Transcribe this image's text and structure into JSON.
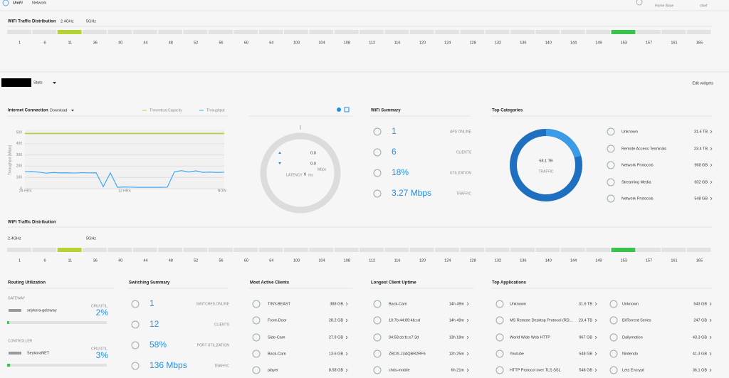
{
  "header": {
    "brand": "UniFi",
    "product": "Network",
    "site": "Home Base",
    "user": "chief"
  },
  "wifi_top": {
    "title": "WiFi Traffic Distribution",
    "bands": [
      "2.4GHz",
      "5GHz"
    ],
    "channels": [
      "1",
      "6",
      "11",
      "36",
      "40",
      "44",
      "48",
      "52",
      "56",
      "60",
      "64",
      "100",
      "104",
      "108",
      "112",
      "116",
      "120",
      "124",
      "128",
      "132",
      "136",
      "140",
      "144",
      "149",
      "153",
      "157",
      "161",
      "165"
    ],
    "active": [
      {
        "channel": "11",
        "color": "#b5d334"
      },
      {
        "channel": "153",
        "color": "#3bc44b"
      }
    ]
  },
  "stats": {
    "title": "Stats",
    "edit": "Edit widgets"
  },
  "chart_data": {
    "type": "line",
    "title": "Internet Connection",
    "mode": "Download",
    "y_label": "Throughput [Mbps]",
    "categories": [
      "24 HRS",
      null,
      null,
      null,
      null,
      null,
      null,
      null,
      null,
      null,
      null,
      null,
      null,
      null,
      "12 HRS",
      null,
      null,
      null,
      null,
      null,
      null,
      null,
      null,
      null,
      null,
      null,
      null,
      null,
      "NOW"
    ],
    "ylim": [
      0,
      500
    ],
    "yticks": [
      0,
      100,
      200,
      300,
      400,
      500
    ],
    "grid": true,
    "series": [
      {
        "name": "Theoretical Capacity",
        "color": "#b5d334",
        "values": [
          490,
          490,
          490,
          490,
          490,
          490,
          490,
          490,
          490,
          490,
          490,
          490,
          490,
          490,
          490,
          490,
          490,
          490,
          490,
          490,
          490,
          490,
          490,
          490,
          490,
          490,
          490,
          490,
          490
        ]
      },
      {
        "name": "Throughput",
        "color": "#3fa9f5",
        "values": [
          150,
          152,
          146,
          138,
          143,
          140,
          141,
          139,
          142,
          140,
          141,
          18,
          140,
          12,
          15,
          13,
          12,
          12,
          12,
          12,
          13,
          150,
          160,
          148,
          158,
          145,
          147,
          144,
          146
        ]
      }
    ]
  },
  "speedtest": {
    "down": "0.0",
    "up": "0.0",
    "unit": "Mbps",
    "latency_label": "LATENCY",
    "latency": "0",
    "latency_unit": "ms"
  },
  "wifi_summary": {
    "title": "WiFi Summary",
    "items": [
      {
        "value": "1",
        "label": "APS ONLINE"
      },
      {
        "value": "6",
        "label": "CLIENTS"
      },
      {
        "value": "18%",
        "label": "UTILIZATION"
      },
      {
        "value": "3.27 Mbps",
        "label": "TRAFFIC"
      }
    ]
  },
  "top_categories": {
    "title": "Top Categories",
    "total": "58.1 TB",
    "total_label": "TRAFFIC",
    "items": [
      {
        "name": "Unknown",
        "value": "31.6 TB"
      },
      {
        "name": "Remote Access Terminals",
        "value": "23.4 TB"
      },
      {
        "name": "Network Protocols",
        "value": "968 GB"
      },
      {
        "name": "Streaming Media",
        "value": "602 GB"
      },
      {
        "name": "Network Protocols",
        "value": "548 GB"
      }
    ]
  },
  "wifi_bottom": {
    "title": "WiFi Traffic Distribution",
    "bands": [
      "2.4GHz",
      "5GHz"
    ],
    "channels": [
      "1",
      "6",
      "11",
      "36",
      "40",
      "44",
      "48",
      "52",
      "56",
      "60",
      "64",
      "100",
      "104",
      "108",
      "112",
      "116",
      "120",
      "124",
      "128",
      "132",
      "136",
      "140",
      "144",
      "149",
      "153",
      "157",
      "161",
      "165"
    ],
    "active": [
      {
        "channel": "11",
        "color": "#b5d334"
      },
      {
        "channel": "153",
        "color": "#3bc44b"
      }
    ]
  },
  "routing": {
    "title": "Routing Utilization",
    "sections": [
      {
        "label": "GATEWAY",
        "name": "seykora-gateway",
        "metric": "CPU/UTIL.",
        "value": 2,
        "value_label": "2%"
      },
      {
        "label": "CONTROLLER",
        "name": "SeykoraNET",
        "metric": "CPU/UTIL.",
        "value": 3,
        "value_label": "3%"
      }
    ]
  },
  "switching": {
    "title": "Switching Summary",
    "items": [
      {
        "value": "1",
        "label": "SWITCHES ONLINE"
      },
      {
        "value": "12",
        "label": "CLIENTS"
      },
      {
        "value": "58%",
        "label": "PORT UTILIZATION"
      },
      {
        "value": "136 Mbps",
        "label": "TRAFFIC"
      }
    ]
  },
  "active_clients": {
    "title": "Most Active Clients",
    "items": [
      {
        "name": "TINY-BEAST",
        "value": "388 GB"
      },
      {
        "name": "Front-Door",
        "value": "28.2 GB"
      },
      {
        "name": "Side-Cam",
        "value": "27.9 GB"
      },
      {
        "name": "Back-Cam",
        "value": "13.6 GB"
      },
      {
        "name": "player",
        "value": "8.58 GB"
      }
    ]
  },
  "uptime": {
    "title": "Longest Client Uptime",
    "items": [
      {
        "name": "Back-Cam",
        "value": "14h 49m"
      },
      {
        "name": "10:7b:44:89:4b:cd",
        "value": "14h 49m"
      },
      {
        "name": "94:58:cb:fc:e7:3d",
        "value": "13h 18m"
      },
      {
        "name": "ZBOX-J3AQBR2RF6",
        "value": "12h 25m"
      },
      {
        "name": "chris-mobile",
        "value": "6h 21m"
      }
    ]
  },
  "top_apps": {
    "title": "Top Applications",
    "columns": [
      [
        {
          "name": "Unknown",
          "value": "31.6 TB"
        },
        {
          "name": "MS Remote Desktop Protocol (RD...",
          "value": "23.4 TB"
        },
        {
          "name": "World Wide Web HTTP",
          "value": "967 GB"
        },
        {
          "name": "Youtube",
          "value": "548 GB"
        },
        {
          "name": "HTTP Protocol over TLS SSL",
          "value": "548 GB"
        }
      ],
      [
        {
          "name": "Unknown",
          "value": "543 GB"
        },
        {
          "name": "BitTorrent Series",
          "value": "247 GB"
        },
        {
          "name": "Dailymotion",
          "value": "43.3 GB"
        },
        {
          "name": "Nintendo",
          "value": "41.3 GB"
        },
        {
          "name": "Lets Encrypt",
          "value": "36.1 GB"
        }
      ]
    ]
  }
}
